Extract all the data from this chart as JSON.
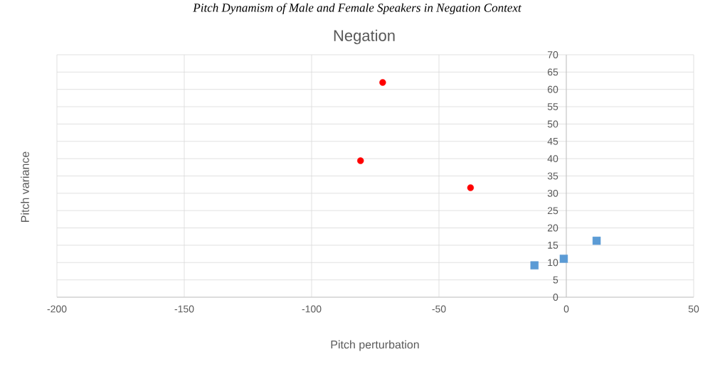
{
  "chart_data": {
    "type": "scatter",
    "title": "Negation",
    "xlabel": "Pitch perturbation",
    "ylabel": "Pitch variance",
    "annotations": [
      "Pitch Dynamism of Male and Female Speakers in Negation Context"
    ],
    "xlim": [
      -200,
      50
    ],
    "xticks": [
      -200,
      -150,
      -100,
      -50,
      0,
      50
    ],
    "ylim": [
      0,
      70
    ],
    "yticks": [
      0,
      5,
      10,
      15,
      20,
      25,
      30,
      35,
      40,
      45,
      50,
      55,
      60,
      65,
      70
    ],
    "grid": true,
    "series": [
      {
        "color": "#ff0000",
        "marker": "circle",
        "x": [
          -72.1,
          -80.8,
          -37.6
        ],
        "values": [
          62.0,
          39.4,
          31.6
        ]
      },
      {
        "color": "#5b9bd5",
        "marker": "square",
        "x": [
          -12.5,
          -1.0,
          11.9
        ],
        "values": [
          9.2,
          11.1,
          16.3
        ]
      }
    ]
  }
}
